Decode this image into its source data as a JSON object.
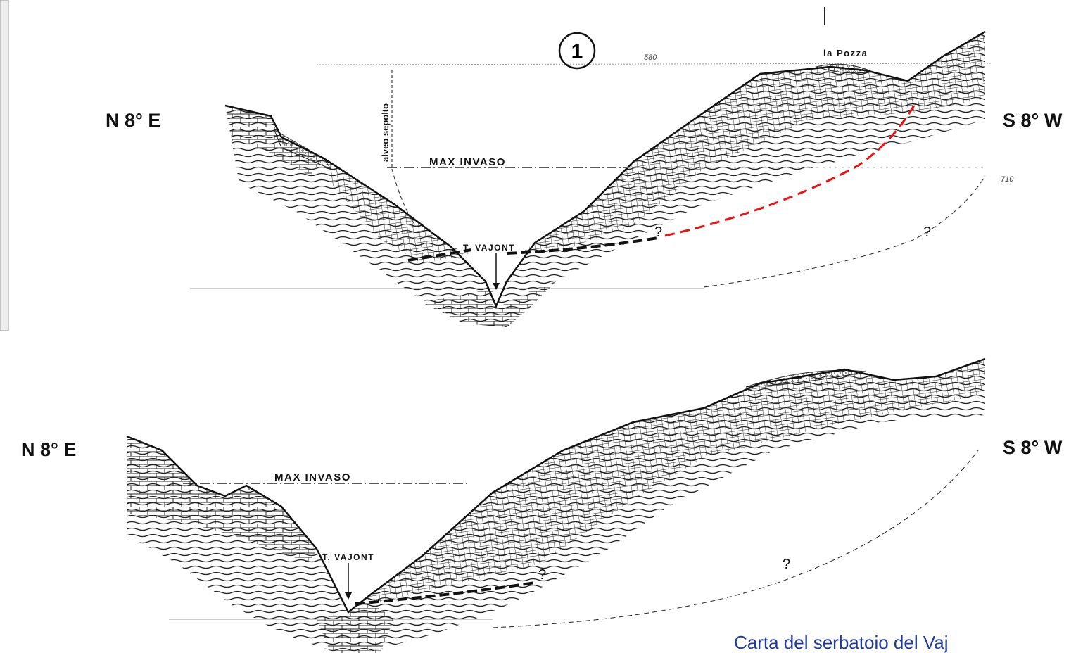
{
  "section_1": {
    "number": "1",
    "elevation_top": "580",
    "place": "la Pozza",
    "left_direction": "N 8° E",
    "right_direction": "S 8° W",
    "buried_channel": "alveo sepolto",
    "reservoir_level": "MAX INVASO",
    "river": "T. VAJONT",
    "elevation_right": "710",
    "query_marks": [
      "?",
      "?"
    ]
  },
  "section_2": {
    "left_direction": "N 8° E",
    "right_direction": "S 8° W",
    "reservoir_level": "MAX INVASO",
    "river": "T. VAJONT",
    "query_marks": [
      "?",
      "?"
    ]
  },
  "caption": "Carta del serbatoio del Vaj"
}
